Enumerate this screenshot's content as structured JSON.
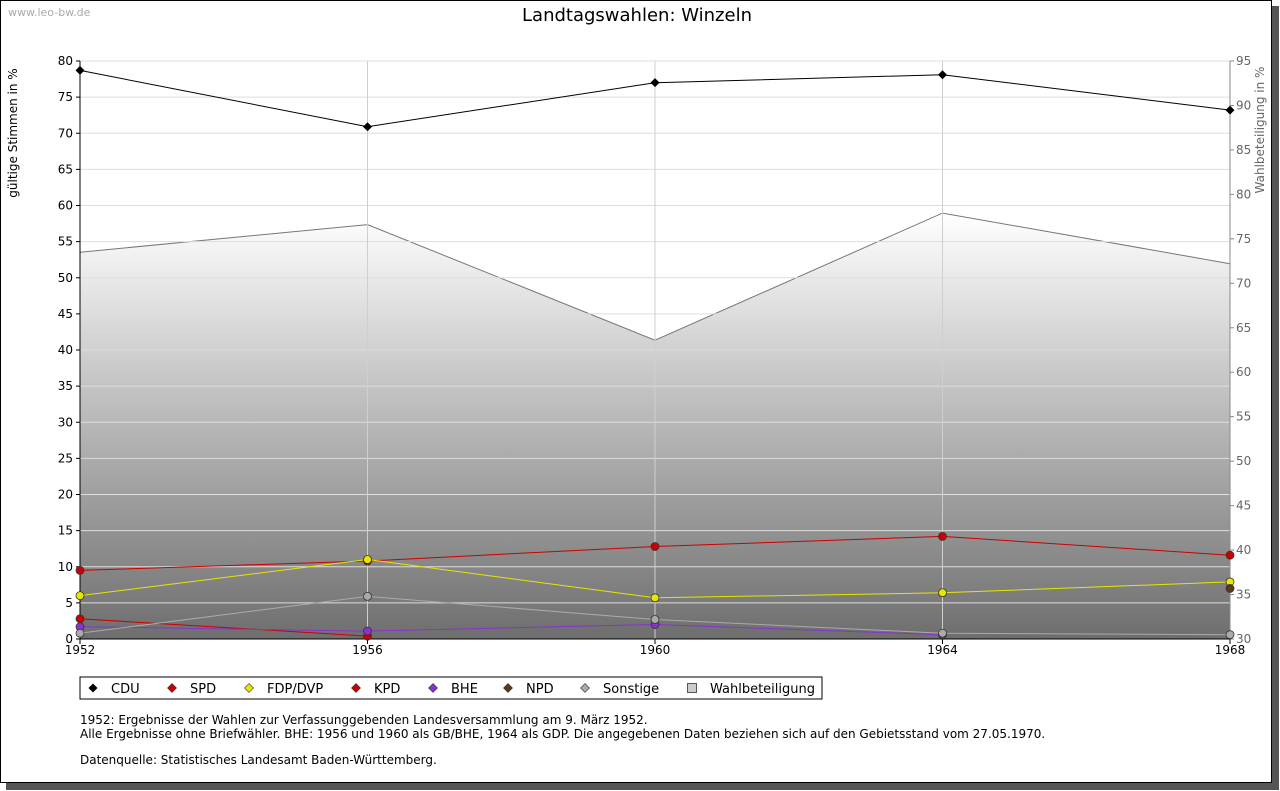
{
  "watermark": "www.leo-bw.de",
  "chart_data": {
    "type": "line",
    "title": "Landtagswahlen: Winzeln",
    "x": [
      "1952",
      "1956",
      "1960",
      "1964",
      "1968"
    ],
    "ylabel": "gültige Stimmen in %",
    "ylabel_right": "Wahlbeteiligung in %",
    "ylim": [
      0,
      80
    ],
    "ylim_right": [
      30,
      95
    ],
    "yticks": [
      0,
      5,
      10,
      15,
      20,
      25,
      30,
      35,
      40,
      45,
      50,
      55,
      60,
      65,
      70,
      75,
      80
    ],
    "yticks_right": [
      30,
      35,
      40,
      45,
      50,
      55,
      60,
      65,
      70,
      75,
      80,
      85,
      90,
      95
    ],
    "grid": true,
    "legend_position": "bottom",
    "series": [
      {
        "name": "CDU",
        "axis": "left",
        "color": "#000000",
        "values": [
          78.7,
          70.9,
          77.0,
          78.1,
          73.2
        ]
      },
      {
        "name": "SPD",
        "axis": "left",
        "color": "#cc0000",
        "values": [
          9.5,
          10.8,
          12.8,
          14.2,
          11.6
        ]
      },
      {
        "name": "FDP/DVP",
        "axis": "left",
        "color": "#e6e600",
        "values": [
          6.0,
          11.0,
          5.7,
          6.4,
          7.9
        ]
      },
      {
        "name": "KPD",
        "axis": "left",
        "color": "#cc0000",
        "values": [
          2.8,
          0.4,
          null,
          null,
          null
        ]
      },
      {
        "name": "BHE",
        "axis": "left",
        "color": "#8833cc",
        "values": [
          1.7,
          1.1,
          2.0,
          0.6,
          null
        ]
      },
      {
        "name": "NPD",
        "axis": "left",
        "color": "#5a3a1a",
        "values": [
          null,
          null,
          null,
          null,
          7.0
        ]
      },
      {
        "name": "Sonstige",
        "axis": "left",
        "color": "#aaaaaa",
        "values": [
          0.8,
          5.9,
          2.7,
          0.8,
          0.6
        ]
      },
      {
        "name": "Wahlbeteiligung",
        "axis": "right",
        "type": "area",
        "color": "#888888",
        "values": [
          73.5,
          76.6,
          63.6,
          77.9,
          72.2
        ]
      }
    ]
  },
  "notes": [
    "1952: Ergebnisse der Wahlen zur Verfassunggebenden Landesversammlung am 9. März 1952.",
    "Alle Ergebnisse ohne Briefwähler. BHE: 1956 und 1960 als GB/BHE, 1964 als GDP. Die angegebenen Daten beziehen sich auf den Gebietsstand vom 27.05.1970.",
    "Datenquelle: Statistisches Landesamt Baden-Württemberg."
  ]
}
